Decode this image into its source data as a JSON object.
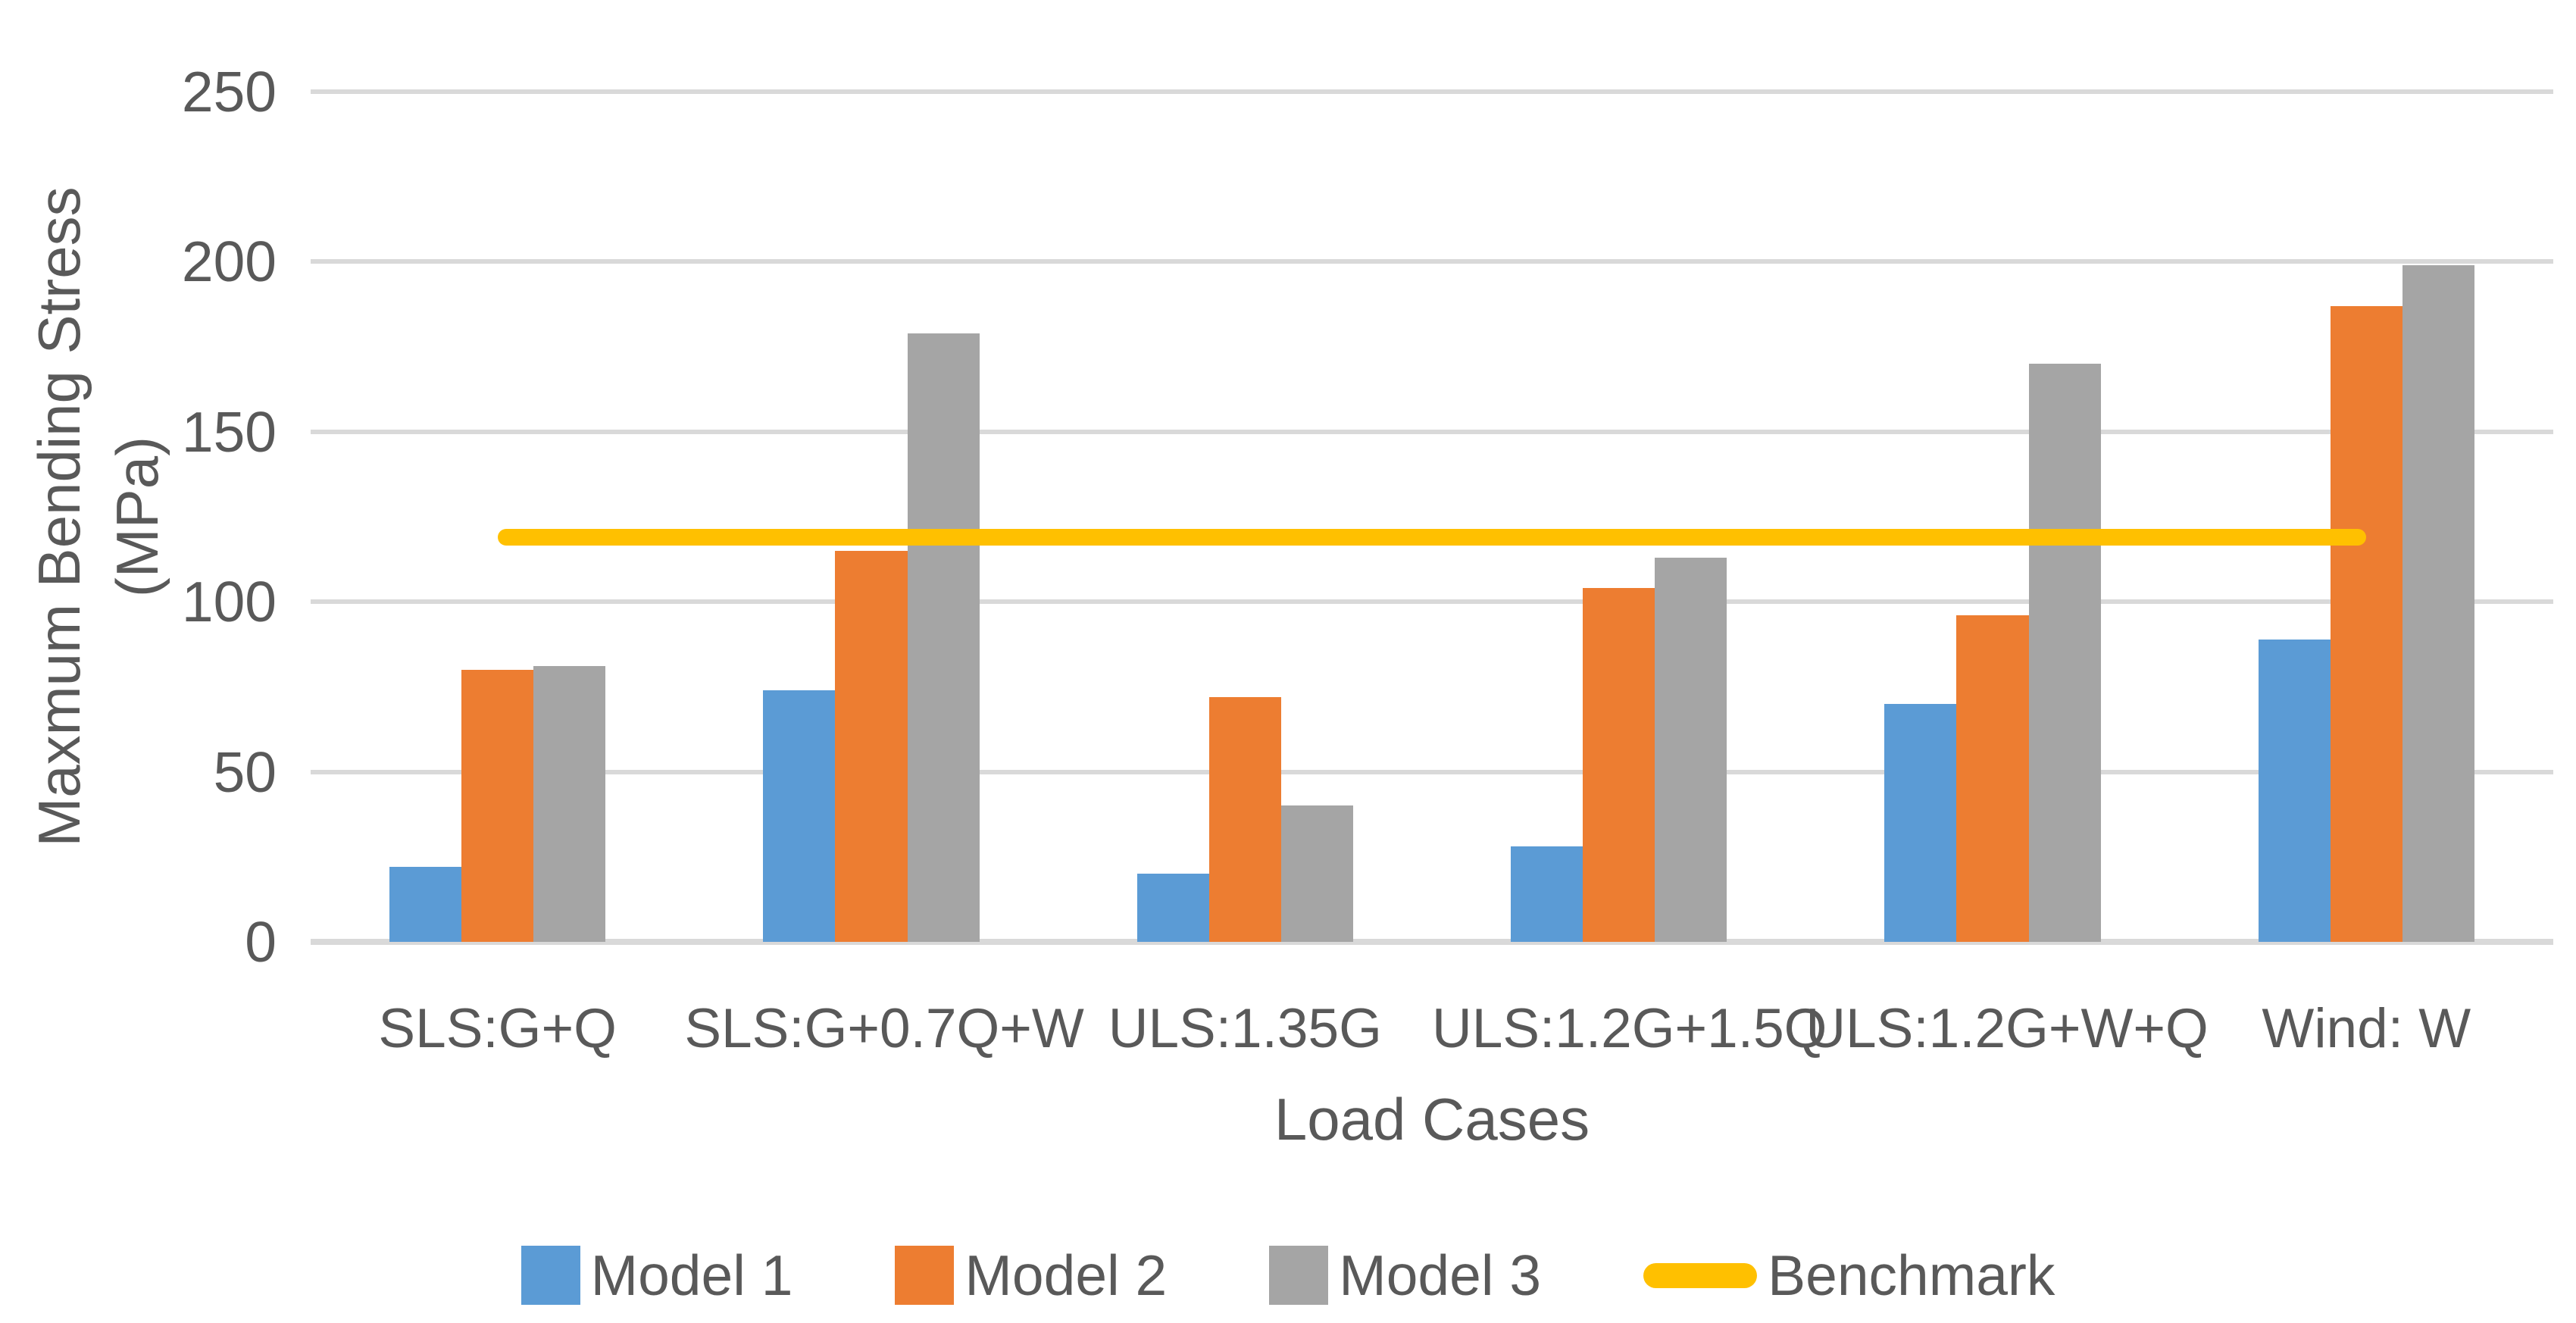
{
  "chart_data": {
    "type": "bar",
    "title": "",
    "xlabel": "Load Cases",
    "ylabel": "Maxmum Bending Stress (MPa)",
    "ylabel_lines": [
      "Maxmum Bending Stress",
      "(MPa)"
    ],
    "categories": [
      "SLS:G+Q",
      "SLS:G+0.7Q+W",
      "ULS:1.35G",
      "ULS:1.2G+1.5Q",
      "ULS:1.2G+W+Q",
      "Wind: W"
    ],
    "series": [
      {
        "name": "Model 1",
        "color": "#5B9BD5",
        "values": [
          22,
          74,
          20,
          28,
          70,
          89
        ]
      },
      {
        "name": "Model 2",
        "color": "#ED7D31",
        "values": [
          80,
          115,
          72,
          104,
          96,
          187
        ]
      },
      {
        "name": "Model 3",
        "color": "#A5A5A5",
        "values": [
          81,
          179,
          40,
          113,
          170,
          199
        ]
      }
    ],
    "benchmark": {
      "name": "Benchmark",
      "color": "#FFC000",
      "value": 119
    },
    "ylim": [
      0,
      250
    ],
    "yticks": [
      0,
      50,
      100,
      150,
      200,
      250
    ],
    "ytick_interval": 50,
    "grid": true,
    "legend_position": "bottom",
    "colors": {
      "gridline": "#D9D9D9",
      "axis_line": "#D9D9D9",
      "text": "#595959",
      "background": "#FFFFFF"
    }
  }
}
